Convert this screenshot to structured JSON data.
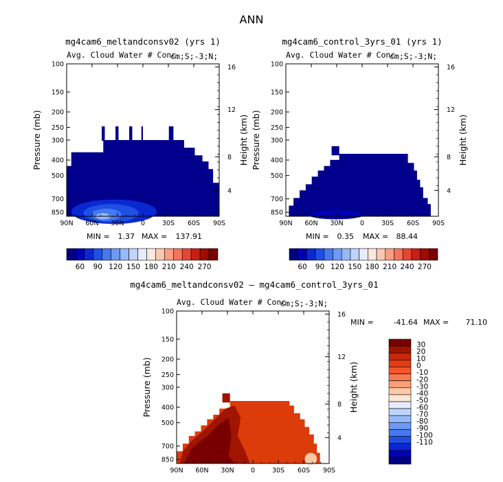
{
  "figure_title": "ANN",
  "colors": {
    "abs_scale": [
      "#000080",
      "#0000b4",
      "#0a28d2",
      "#1e50e6",
      "#4678f0",
      "#6e9af5",
      "#96b9fa",
      "#bed4fc",
      "#e6ecfd",
      "#fbe8dc",
      "#fcc8b0",
      "#fa9e82",
      "#f5735a",
      "#e64632",
      "#c81e14",
      "#a00a00",
      "#780000"
    ],
    "diff_scale": [
      "#000080",
      "#0000b4",
      "#0a28d2",
      "#1e50e6",
      "#4678f0",
      "#6e9af5",
      "#96b9fa",
      "#bed4fc",
      "#e6ecfd",
      "#fde6d2",
      "#fcc8a8",
      "#faa078",
      "#f87a50",
      "#f5552d",
      "#e63c14",
      "#c8280a",
      "#a01400",
      "#780000"
    ],
    "panel1_fill": "#00008c",
    "panel2_fill": "#00008c",
    "panel3_fill": "#dc3c0a"
  },
  "chart_data": [
    {
      "type": "heatmap",
      "title": "mg4cam6_meltandconsv02 (yrs 1)",
      "subtitle": "Avg. Cloud Water # Conc",
      "units_label": "cm;S;-3;N;",
      "ylabel": "Pressure (mb)",
      "right_ylabel": "Height (km)",
      "x_ticks": [
        "90N",
        "60N",
        "30N",
        "0",
        "30S",
        "60S",
        "90S"
      ],
      "y_ticks": [
        "100",
        "150",
        "200",
        "250",
        "300",
        "400",
        "500",
        "700",
        "850"
      ],
      "right_ticks": [
        "16",
        "12",
        "8",
        "4"
      ],
      "min_label": "MIN =",
      "min_value": "1.37",
      "max_label": "MAX =",
      "max_value": "137.91",
      "colorbar_labels": [
        "60",
        "90",
        "120",
        "150",
        "180",
        "210",
        "240",
        "270"
      ]
    },
    {
      "type": "heatmap",
      "title": "mg4cam6_control_3yrs_01 (yrs 1)",
      "subtitle": "Avg. Cloud Water # Conc",
      "units_label": "cm;S;-3;N;",
      "ylabel": "Pressure (mb)",
      "right_ylabel": "Height (km)",
      "x_ticks": [
        "90N",
        "60N",
        "30N",
        "0",
        "30S",
        "60S",
        "90S"
      ],
      "y_ticks": [
        "100",
        "150",
        "200",
        "250",
        "300",
        "400",
        "500",
        "700",
        "850"
      ],
      "right_ticks": [
        "16",
        "12",
        "8",
        "4"
      ],
      "min_label": "MIN =",
      "min_value": "0.35",
      "max_label": "MAX =",
      "max_value": "88.44",
      "colorbar_labels": [
        "60",
        "90",
        "120",
        "150",
        "180",
        "210",
        "240",
        "270"
      ]
    },
    {
      "type": "heatmap",
      "title": "mg4cam6_meltandconsv02 – mg4cam6_control_3yrs_01",
      "subtitle": "Avg. Cloud Water # Conc",
      "units_label": "cm;S;-3;N;",
      "ylabel": "Pressure (mb)",
      "right_ylabel": "Height (km)",
      "x_ticks": [
        "90N",
        "60N",
        "30N",
        "0",
        "30S",
        "60S",
        "90S"
      ],
      "y_ticks": [
        "100",
        "150",
        "200",
        "250",
        "300",
        "400",
        "500",
        "700",
        "850"
      ],
      "right_ticks": [
        "16",
        "12",
        "8",
        "4"
      ],
      "min_label": "MIN =",
      "min_value": "-41.64",
      "max_label": "MAX =",
      "max_value": "71.10",
      "colorbar_labels": [
        "30",
        "20",
        "10",
        "0",
        "-10",
        "-20",
        "-30",
        "-40",
        "-50",
        "-60",
        "-70",
        "-80",
        "-90",
        "-100",
        "-110"
      ]
    }
  ]
}
